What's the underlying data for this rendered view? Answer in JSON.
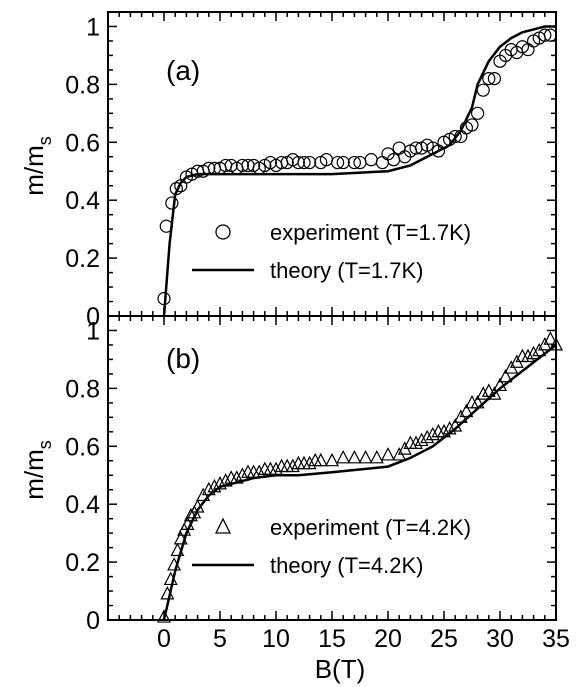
{
  "chart_data": [
    {
      "type": "scatter",
      "panel_label": "(a)",
      "xlim": [
        -5,
        35
      ],
      "ylim": [
        0,
        1.05
      ],
      "x_ticks": [
        0,
        5,
        10,
        15,
        20,
        25,
        30,
        35
      ],
      "y_ticks": [
        "0",
        "0.2",
        "0.4",
        "0.6",
        "0.8",
        "1"
      ],
      "ylabel": "m/m",
      "ylabel_sub": "s",
      "legend_position": "bottom-right",
      "series": [
        {
          "name": "experiment (T=1.7K)",
          "marker": "circle",
          "x": [
            0.0,
            0.2,
            0.7,
            1.1,
            1.5,
            2.0,
            2.5,
            3.0,
            3.5,
            4.0,
            4.5,
            5.0,
            5.5,
            6.0,
            6.5,
            7.0,
            7.5,
            8.0,
            8.5,
            9.0,
            9.5,
            10.0,
            10.5,
            11.0,
            11.5,
            12.0,
            12.5,
            13.0,
            14.0,
            14.5,
            15.5,
            16.0,
            17.0,
            17.5,
            18.5,
            19.5,
            20.0,
            20.5,
            21.0,
            21.5,
            22.0,
            22.5,
            23.0,
            23.5,
            24.0,
            24.5,
            25.0,
            25.5,
            26.0,
            26.5,
            27.0,
            27.5,
            28.0,
            28.5,
            29.0,
            29.5,
            30.0,
            30.5,
            31.0,
            31.5,
            32.0,
            32.5,
            33.0,
            33.5,
            34.0,
            34.5
          ],
          "y": [
            0.06,
            0.31,
            0.39,
            0.44,
            0.45,
            0.48,
            0.49,
            0.5,
            0.5,
            0.51,
            0.51,
            0.51,
            0.52,
            0.52,
            0.51,
            0.52,
            0.52,
            0.52,
            0.51,
            0.52,
            0.53,
            0.52,
            0.53,
            0.53,
            0.54,
            0.53,
            0.53,
            0.53,
            0.53,
            0.54,
            0.53,
            0.53,
            0.53,
            0.53,
            0.54,
            0.53,
            0.56,
            0.54,
            0.58,
            0.55,
            0.57,
            0.58,
            0.58,
            0.59,
            0.58,
            0.57,
            0.6,
            0.61,
            0.62,
            0.62,
            0.65,
            0.66,
            0.7,
            0.78,
            0.82,
            0.82,
            0.88,
            0.9,
            0.92,
            0.91,
            0.93,
            0.92,
            0.95,
            0.96,
            0.97,
            0.97
          ]
        },
        {
          "name": "theory (T=1.7K)",
          "marker": "line",
          "x": [
            0.0,
            0.5,
            1.0,
            1.5,
            2.0,
            3.0,
            5.0,
            10.0,
            15.0,
            20.0,
            22.0,
            24.0,
            25.5,
            26.5,
            27.5,
            28.0,
            29.0,
            30.0,
            31.0,
            32.0,
            33.0,
            34.0,
            35.0
          ],
          "y": [
            0.0,
            0.25,
            0.42,
            0.46,
            0.48,
            0.49,
            0.49,
            0.49,
            0.49,
            0.5,
            0.52,
            0.56,
            0.59,
            0.64,
            0.72,
            0.8,
            0.88,
            0.93,
            0.96,
            0.98,
            0.99,
            1.0,
            1.0
          ]
        }
      ]
    },
    {
      "type": "scatter",
      "panel_label": "(b)",
      "xlim": [
        -5,
        35
      ],
      "ylim": [
        0,
        1.05
      ],
      "x_ticks": [
        0,
        5,
        10,
        15,
        20,
        25,
        30,
        35
      ],
      "y_ticks": [
        "0",
        "0.2",
        "0.4",
        "0.6",
        "0.8",
        "1"
      ],
      "ylabel": "m/m",
      "ylabel_sub": "s",
      "xlabel": "B(T)",
      "legend_position": "bottom-right",
      "series": [
        {
          "name": "experiment (T=4.2K)",
          "marker": "triangle",
          "x": [
            0.0,
            0.3,
            0.6,
            0.9,
            1.2,
            1.5,
            1.8,
            2.1,
            2.4,
            2.7,
            3.0,
            3.5,
            4.0,
            4.5,
            5.0,
            5.5,
            6.0,
            6.5,
            7.0,
            7.5,
            8.0,
            8.5,
            9.0,
            9.5,
            10.0,
            10.5,
            11.0,
            11.5,
            12.0,
            12.5,
            13.0,
            13.5,
            14.0,
            15.0,
            16.0,
            17.0,
            18.0,
            19.0,
            20.0,
            21.0,
            21.5,
            22.0,
            22.5,
            23.0,
            23.5,
            24.0,
            24.5,
            25.0,
            25.5,
            26.0,
            26.5,
            27.0,
            27.5,
            28.0,
            28.5,
            29.0,
            29.5,
            30.0,
            30.5,
            31.0,
            31.5,
            32.0,
            32.5,
            33.0,
            33.5,
            34.0,
            34.5,
            35.0
          ],
          "y": [
            0.01,
            0.09,
            0.14,
            0.19,
            0.24,
            0.28,
            0.31,
            0.33,
            0.36,
            0.37,
            0.39,
            0.43,
            0.45,
            0.46,
            0.47,
            0.48,
            0.49,
            0.49,
            0.5,
            0.51,
            0.51,
            0.51,
            0.52,
            0.52,
            0.52,
            0.53,
            0.53,
            0.53,
            0.54,
            0.54,
            0.54,
            0.55,
            0.55,
            0.55,
            0.56,
            0.56,
            0.56,
            0.56,
            0.57,
            0.57,
            0.59,
            0.61,
            0.61,
            0.62,
            0.63,
            0.64,
            0.65,
            0.65,
            0.66,
            0.67,
            0.7,
            0.72,
            0.75,
            0.75,
            0.78,
            0.79,
            0.78,
            0.81,
            0.84,
            0.87,
            0.89,
            0.91,
            0.91,
            0.92,
            0.93,
            0.95,
            0.97,
            0.95
          ]
        },
        {
          "name": "theory (T=4.2K)",
          "marker": "line",
          "x": [
            0.0,
            1.0,
            2.0,
            3.0,
            4.0,
            5.0,
            6.0,
            8.0,
            10.0,
            12.0,
            15.0,
            20.0,
            22.0,
            24.0,
            26.0,
            28.0,
            30.0,
            32.0,
            34.0,
            35.0
          ],
          "y": [
            0.0,
            0.17,
            0.3,
            0.38,
            0.43,
            0.46,
            0.47,
            0.49,
            0.5,
            0.5,
            0.51,
            0.53,
            0.56,
            0.6,
            0.66,
            0.73,
            0.8,
            0.86,
            0.92,
            0.95
          ]
        }
      ]
    }
  ]
}
